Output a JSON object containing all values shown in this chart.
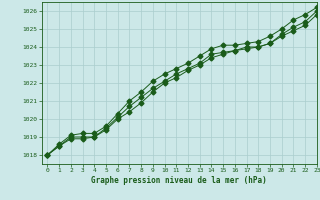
{
  "title": "Graphe pression niveau de la mer (hPa)",
  "xlim": [
    -0.5,
    23
  ],
  "ylim": [
    1017.5,
    1026.5
  ],
  "yticks": [
    1018,
    1019,
    1020,
    1021,
    1022,
    1023,
    1024,
    1025,
    1026
  ],
  "xticks": [
    0,
    1,
    2,
    3,
    4,
    5,
    6,
    7,
    8,
    9,
    10,
    11,
    12,
    13,
    14,
    15,
    16,
    17,
    18,
    19,
    20,
    21,
    22,
    23
  ],
  "bg_color": "#cce8e8",
  "grid_color": "#aacece",
  "line_color": "#1a5c1a",
  "series1": [
    1018.0,
    1018.5,
    1019.0,
    1019.0,
    1019.0,
    1019.5,
    1020.1,
    1020.7,
    1021.2,
    1021.7,
    1022.1,
    1022.5,
    1022.8,
    1023.1,
    1023.6,
    1023.7,
    1023.8,
    1024.0,
    1024.0,
    1024.2,
    1024.7,
    1025.1,
    1025.4,
    1026.0
  ],
  "series2": [
    1018.0,
    1018.5,
    1018.9,
    1018.9,
    1019.0,
    1019.4,
    1020.0,
    1020.4,
    1020.9,
    1021.5,
    1022.0,
    1022.3,
    1022.7,
    1023.0,
    1023.4,
    1023.6,
    1023.8,
    1023.9,
    1024.0,
    1024.2,
    1024.6,
    1024.9,
    1025.2,
    1025.8
  ],
  "series3": [
    1018.0,
    1018.6,
    1019.1,
    1019.2,
    1019.2,
    1019.6,
    1020.3,
    1021.0,
    1021.5,
    1022.1,
    1022.5,
    1022.8,
    1023.1,
    1023.5,
    1023.9,
    1024.1,
    1024.1,
    1024.2,
    1024.3,
    1024.6,
    1025.0,
    1025.5,
    1025.8,
    1026.2
  ]
}
